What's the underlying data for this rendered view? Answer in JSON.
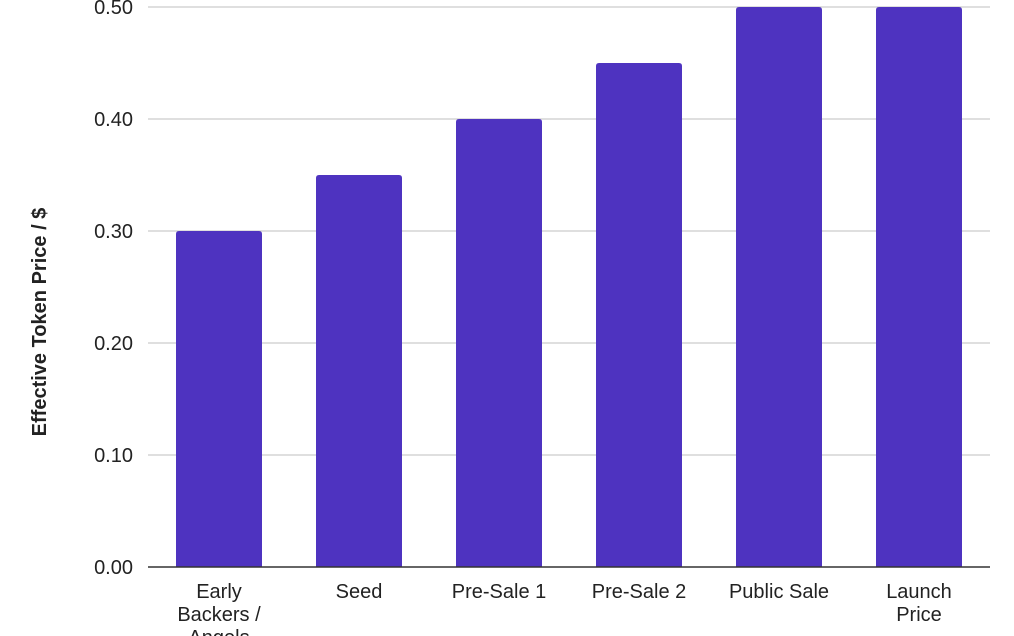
{
  "chart_data": {
    "type": "bar",
    "title": "",
    "xlabel": "",
    "ylabel": "Effective Token Price / $",
    "categories": [
      "Early Backers / Angels",
      "Seed",
      "Pre-Sale 1",
      "Pre-Sale 2",
      "Public Sale",
      "Launch Price"
    ],
    "category_lines": [
      [
        "Early",
        "Backers /",
        "Angels"
      ],
      [
        "Seed"
      ],
      [
        "Pre-Sale 1"
      ],
      [
        "Pre-Sale 2"
      ],
      [
        "Public Sale"
      ],
      [
        "Launch",
        "Price"
      ]
    ],
    "values": [
      0.3,
      0.35,
      0.4,
      0.45,
      0.5,
      0.5
    ],
    "ylim": [
      0,
      0.5
    ],
    "yticks": [
      "0.00",
      "0.10",
      "0.20",
      "0.30",
      "0.40",
      "0.50"
    ],
    "grid": true,
    "legend": "none",
    "bar_color": "#4e33c0",
    "grid_color": "#cccccc",
    "axis_color": "#333333"
  }
}
